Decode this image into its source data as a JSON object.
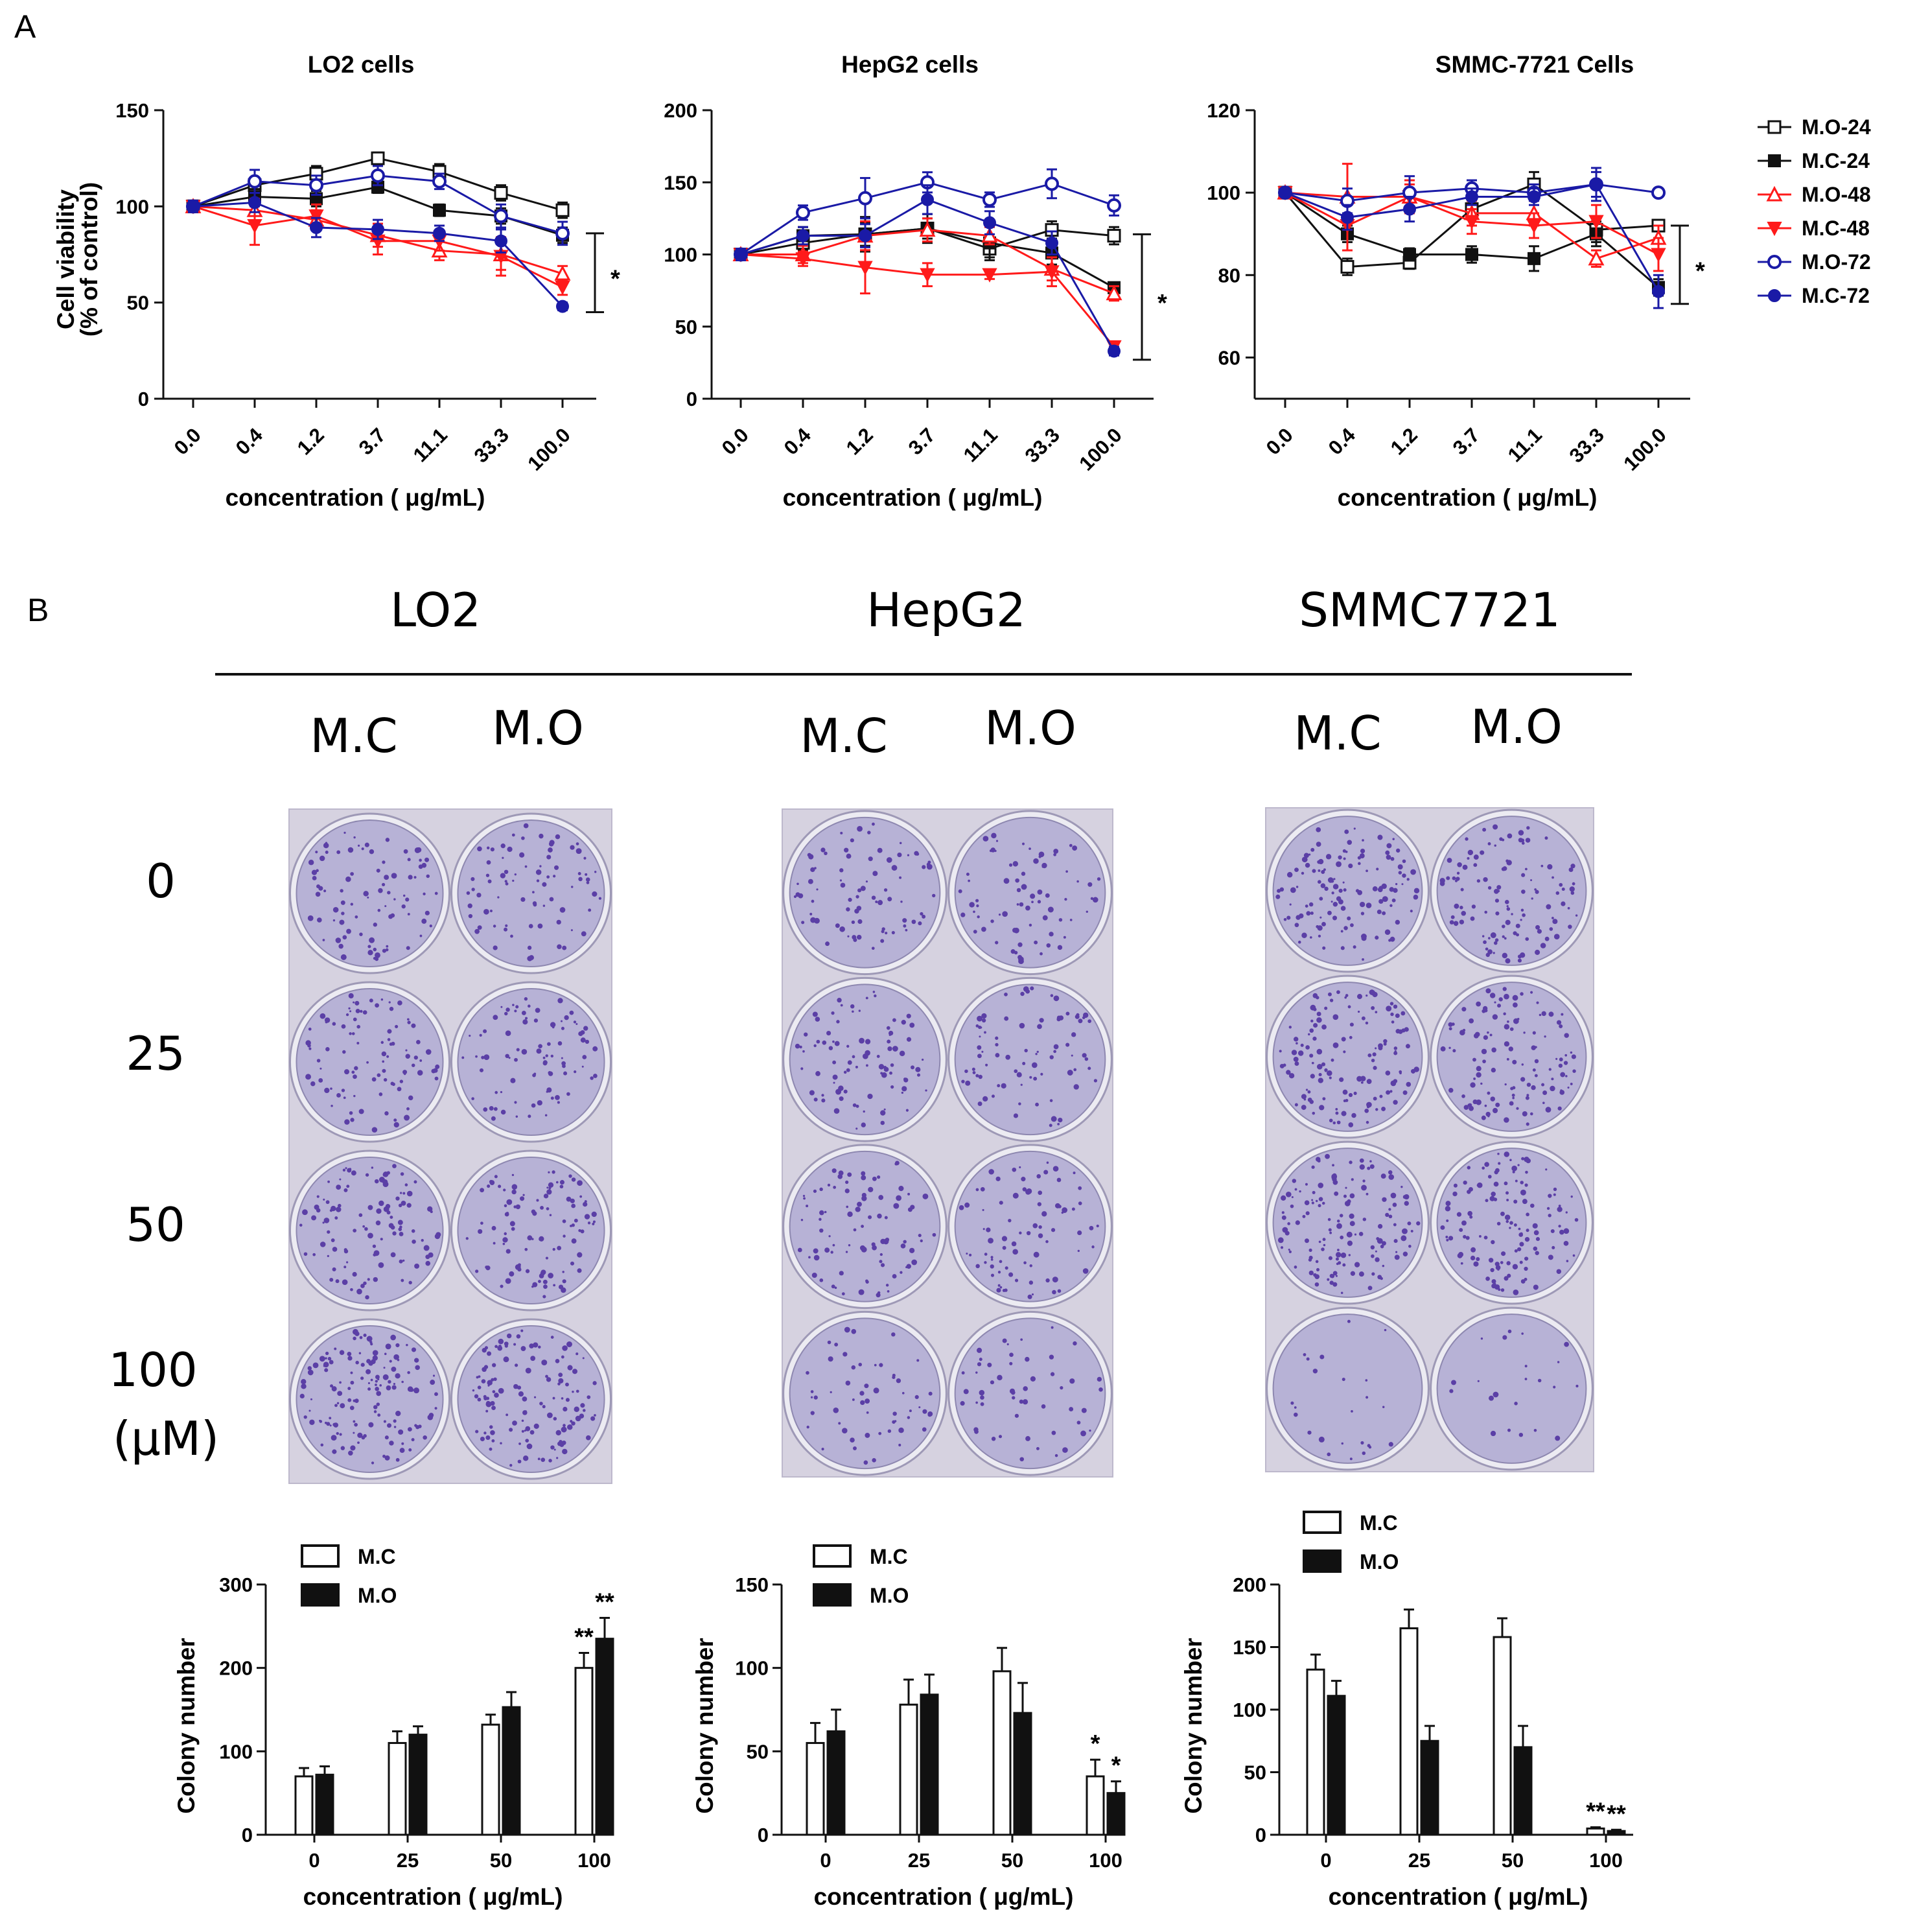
{
  "panel_labels": {
    "a": "A",
    "b": "B"
  },
  "colors": {
    "M.O-24": "#111111",
    "M.C-24": "#111111",
    "M.O-48": "#ff1a1a",
    "M.C-48": "#ff1a1a",
    "M.O-72": "#1a1aa6",
    "M.C-72": "#1a1aa6",
    "dish": "#b7b2d6",
    "colony": "#4b2a9e"
  },
  "legend_a": [
    {
      "name": "M.O-24",
      "marker": "square-open"
    },
    {
      "name": "M.C-24",
      "marker": "square-filled"
    },
    {
      "name": "M.O-48",
      "marker": "triangle-open"
    },
    {
      "name": "M.C-48",
      "marker": "triangle-down-filled"
    },
    {
      "name": "M.O-72",
      "marker": "circle-open"
    },
    {
      "name": "M.C-72",
      "marker": "circle-filled"
    }
  ],
  "section_b": {
    "cell_lines": [
      "LO2",
      "HepG2",
      "SMMC7721"
    ],
    "groups": [
      "M.C",
      "M.O"
    ],
    "doses": [
      "0",
      "25",
      "50",
      "100"
    ],
    "dose_unit": "(μM)"
  },
  "chart_data": [
    {
      "type": "line",
      "id": "lo2-viability",
      "title": "LO2 cells",
      "xlabel": "concentration ( μg/mL)",
      "ylabel": [
        "Cell viability",
        "(% of control)"
      ],
      "categories": [
        "0.0",
        "0.4",
        "1.2",
        "3.7",
        "11.1",
        "33.3",
        "100.0"
      ],
      "ylim": [
        0,
        150
      ],
      "yticks": [
        "0",
        "50",
        "100",
        "150"
      ],
      "significance": "*",
      "sig_range": [
        45,
        86
      ],
      "series": [
        {
          "name": "M.O-24",
          "values": [
            100,
            111,
            117,
            125,
            118,
            107,
            98
          ],
          "err": [
            3,
            4,
            4,
            3,
            4,
            4,
            4
          ]
        },
        {
          "name": "M.C-24",
          "values": [
            100,
            105,
            104,
            110,
            98,
            95,
            85
          ],
          "err": [
            3,
            4,
            4,
            3,
            3,
            4,
            4
          ]
        },
        {
          "name": "M.O-48",
          "values": [
            100,
            98,
            93,
            85,
            77,
            75,
            65
          ],
          "err": [
            3,
            6,
            5,
            6,
            5,
            8,
            4
          ]
        },
        {
          "name": "M.C-48",
          "values": [
            100,
            90,
            95,
            82,
            82,
            74,
            58
          ],
          "err": [
            3,
            10,
            6,
            7,
            5,
            10,
            4
          ]
        },
        {
          "name": "M.O-72",
          "values": [
            100,
            113,
            111,
            116,
            113,
            95,
            86
          ],
          "err": [
            3,
            6,
            5,
            5,
            4,
            6,
            6
          ]
        },
        {
          "name": "M.C-72",
          "values": [
            100,
            102,
            89,
            88,
            86,
            82,
            48
          ],
          "err": [
            3,
            5,
            5,
            5,
            4,
            6,
            2
          ]
        }
      ]
    },
    {
      "type": "line",
      "id": "hepg2-viability",
      "title": "HepG2 cells",
      "xlabel": "concentration ( μg/mL)",
      "ylabel": [],
      "categories": [
        "0.0",
        "0.4",
        "1.2",
        "3.7",
        "11.1",
        "33.3",
        "100.0"
      ],
      "ylim": [
        0,
        200
      ],
      "yticks": [
        "0",
        "50",
        "100",
        "150",
        "200"
      ],
      "significance": "*",
      "sig_range": [
        27,
        114
      ],
      "series": [
        {
          "name": "M.O-24",
          "values": [
            100,
            108,
            114,
            118,
            104,
            117,
            113
          ],
          "err": [
            4,
            5,
            8,
            7,
            6,
            6,
            6
          ]
        },
        {
          "name": "M.C-24",
          "values": [
            100,
            113,
            114,
            118,
            108,
            101,
            77
          ],
          "err": [
            4,
            6,
            12,
            10,
            12,
            8,
            3
          ]
        },
        {
          "name": "M.O-48",
          "values": [
            100,
            100,
            113,
            117,
            113,
            90,
            73
          ],
          "err": [
            4,
            6,
            10,
            8,
            6,
            8,
            5
          ]
        },
        {
          "name": "M.C-48",
          "values": [
            100,
            97,
            91,
            86,
            86,
            88,
            36
          ],
          "err": [
            4,
            5,
            18,
            8,
            3,
            10,
            3
          ]
        },
        {
          "name": "M.O-72",
          "values": [
            100,
            129,
            139,
            150,
            138,
            149,
            134
          ],
          "err": [
            4,
            5,
            14,
            7,
            5,
            10,
            7
          ]
        },
        {
          "name": "M.C-72",
          "values": [
            100,
            113,
            113,
            138,
            122,
            108,
            33
          ],
          "err": [
            4,
            6,
            8,
            10,
            8,
            8,
            3
          ]
        }
      ]
    },
    {
      "type": "line",
      "id": "smmc-viability",
      "title": "SMMC-7721 Cells",
      "xlabel": "concentration ( μg/mL)",
      "ylabel": [],
      "categories": [
        "0.0",
        "0.4",
        "1.2",
        "3.7",
        "11.1",
        "33.3",
        "100.0"
      ],
      "ylim": [
        50,
        120
      ],
      "yticks": [
        "60",
        "80",
        "100",
        "120"
      ],
      "significance": "*",
      "sig_range": [
        73,
        92
      ],
      "series": [
        {
          "name": "M.O-24",
          "values": [
            100,
            82,
            83,
            96,
            102,
            91,
            92
          ],
          "err": [
            1,
            2,
            1.5,
            2,
            3,
            3,
            1
          ]
        },
        {
          "name": "M.C-24",
          "values": [
            100,
            90,
            85,
            85,
            84,
            90,
            77
          ],
          "err": [
            1,
            2,
            1.5,
            2,
            3,
            3,
            2
          ]
        },
        {
          "name": "M.O-48",
          "values": [
            100,
            99,
            99,
            95,
            95,
            84,
            89
          ],
          "err": [
            1,
            8,
            4,
            3,
            3,
            2,
            3
          ]
        },
        {
          "name": "M.C-48",
          "values": [
            100,
            92,
            99,
            93,
            92,
            93,
            85
          ],
          "err": [
            1,
            6,
            3,
            3,
            3,
            4,
            4
          ]
        },
        {
          "name": "M.O-72",
          "values": [
            100,
            98,
            100,
            101,
            100,
            102,
            100
          ],
          "err": [
            1,
            3,
            4,
            2,
            2,
            3,
            1
          ]
        },
        {
          "name": "M.C-72",
          "values": [
            100,
            94,
            96,
            99,
            99,
            102,
            76
          ],
          "err": [
            1,
            3,
            3,
            2,
            2,
            4,
            4
          ]
        }
      ]
    },
    {
      "type": "bar",
      "id": "lo2-colony",
      "ylabel": "Colony number",
      "xlabel": "concentration ( μg/mL)",
      "categories": [
        "0",
        "25",
        "50",
        "100"
      ],
      "ylim": [
        0,
        300
      ],
      "yticks": [
        "0",
        "100",
        "200",
        "300"
      ],
      "legend": [
        "M.C",
        "M.O"
      ],
      "series": [
        {
          "name": "M.C",
          "values": [
            70,
            110,
            132,
            200
          ],
          "err": [
            10,
            14,
            12,
            18
          ],
          "sig": [
            "",
            "",
            "",
            "**"
          ]
        },
        {
          "name": "M.O",
          "values": [
            72,
            120,
            153,
            235
          ],
          "err": [
            10,
            10,
            18,
            25
          ],
          "sig": [
            "",
            "",
            "",
            "**"
          ]
        }
      ]
    },
    {
      "type": "bar",
      "id": "hepg2-colony",
      "ylabel": "Colony number",
      "xlabel": "concentration ( μg/mL)",
      "categories": [
        "0",
        "25",
        "50",
        "100"
      ],
      "ylim": [
        0,
        150
      ],
      "yticks": [
        "0",
        "50",
        "100",
        "150"
      ],
      "legend": [
        "M.C",
        "M.O"
      ],
      "series": [
        {
          "name": "M.C",
          "values": [
            55,
            78,
            98,
            35
          ],
          "err": [
            12,
            15,
            14,
            10
          ],
          "sig": [
            "",
            "",
            "",
            "*"
          ]
        },
        {
          "name": "M.O",
          "values": [
            62,
            84,
            73,
            25
          ],
          "err": [
            13,
            12,
            18,
            7
          ],
          "sig": [
            "",
            "",
            "",
            "*"
          ]
        }
      ]
    },
    {
      "type": "bar",
      "id": "smmc-colony",
      "ylabel": "Colony number",
      "xlabel": "concentration ( μg/mL)",
      "categories": [
        "0",
        "25",
        "50",
        "100"
      ],
      "ylim": [
        0,
        200
      ],
      "yticks": [
        "0",
        "50",
        "100",
        "150",
        "200"
      ],
      "legend": [
        "M.C",
        "M.O"
      ],
      "series": [
        {
          "name": "M.C",
          "values": [
            132,
            165,
            158,
            5
          ],
          "err": [
            12,
            15,
            15,
            1
          ],
          "sig": [
            "",
            "",
            "",
            "**"
          ]
        },
        {
          "name": "M.O",
          "values": [
            111,
            75,
            70,
            3
          ],
          "err": [
            12,
            12,
            17,
            1
          ],
          "sig": [
            "",
            "",
            "",
            "**"
          ]
        }
      ]
    }
  ]
}
